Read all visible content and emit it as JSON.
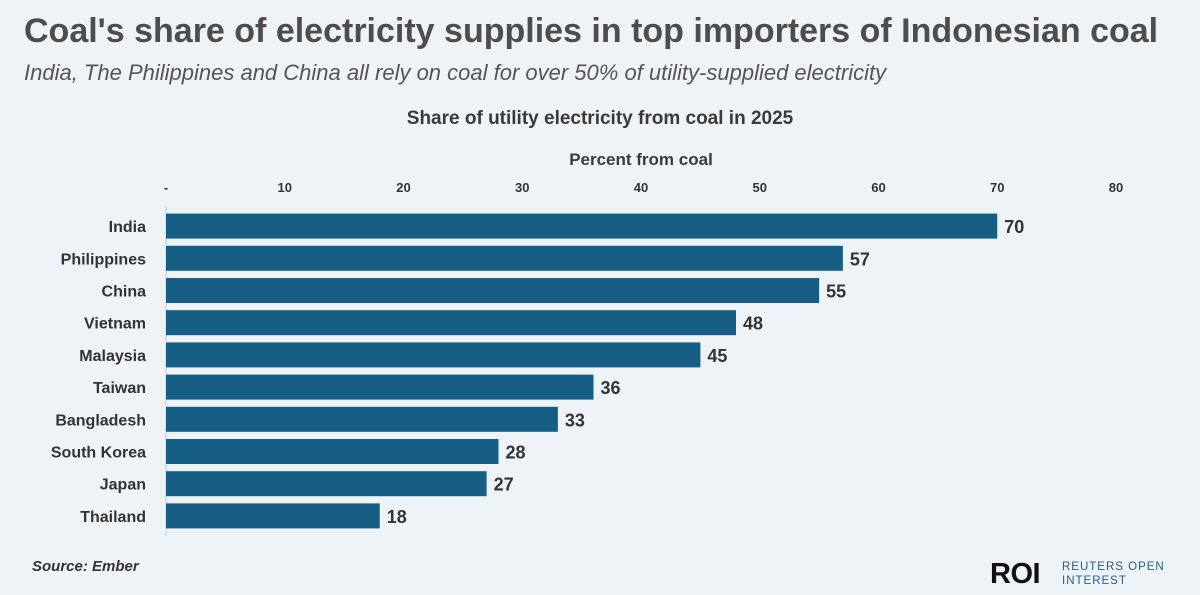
{
  "header": {
    "title": "Coal's share of electricity supplies in top importers of Indonesian coal",
    "subtitle": "India, The Philippines and China all rely on coal for over 50% of utility-supplied electricity"
  },
  "chart_data": {
    "type": "bar",
    "orientation": "horizontal",
    "title": "Share of utility electricity from coal in 2025",
    "xlabel": "Percent from coal",
    "ylabel": "",
    "xlim": [
      0,
      80
    ],
    "ticks": [
      0,
      10,
      20,
      30,
      40,
      50,
      60,
      70,
      80
    ],
    "tick_labels": [
      "-",
      "10",
      "20",
      "30",
      "40",
      "50",
      "60",
      "70",
      "80"
    ],
    "categories": [
      "India",
      "Philippines",
      "China",
      "Vietnam",
      "Malaysia",
      "Taiwan",
      "Bangladesh",
      "South Korea",
      "Japan",
      "Thailand"
    ],
    "values": [
      70,
      57,
      55,
      48,
      45,
      36,
      33,
      28,
      27,
      18
    ],
    "bar_color": "#165e83",
    "grid": false
  },
  "footer": {
    "source": "Source:  Ember",
    "logo_mark": "ROI",
    "logo_text": "REUTERS OPEN INTEREST"
  }
}
